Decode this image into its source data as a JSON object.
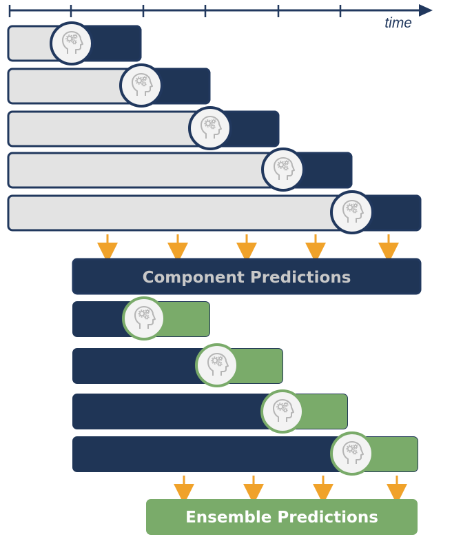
{
  "axis": {
    "label": "time"
  },
  "component_box": {
    "label": "Component Predictions"
  },
  "ensemble_box": {
    "label": "Ensemble Predictions"
  },
  "model_icon_name": "head-gears-icon",
  "colors": {
    "navy": "#1f3556",
    "navy_border": "#21385e",
    "light_gray": "#e3e3e3",
    "green": "#7aab6a",
    "orange_arrow": "#f0a22a",
    "icon_gray": "#b5b5b5",
    "label_gray": "#c8c8c8",
    "label_white": "#ffffff"
  },
  "training_rows": 5,
  "ensemble_rows": 4
}
